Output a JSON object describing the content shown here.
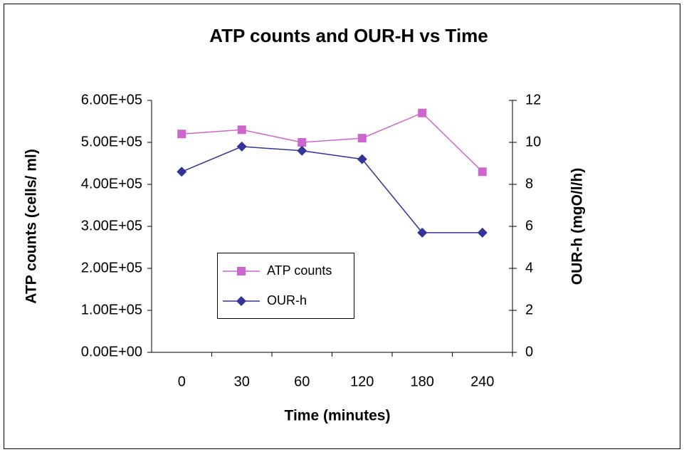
{
  "chart_data": {
    "type": "line",
    "title": "ATP counts and OUR-H vs Time",
    "x_label": "Time (minutes)",
    "y_label": "ATP counts (cells/ ml)",
    "y2_label": "OUR-h (mgO/l/h)",
    "categories": [
      "0",
      "30",
      "60",
      "120",
      "180",
      "240"
    ],
    "series": [
      {
        "name": "ATP counts",
        "color": "#cc66cc",
        "marker": "square",
        "values": [
          520000,
          530000,
          500000,
          510000,
          570000,
          430000
        ]
      },
      {
        "name": "OUR-h",
        "color": "#333399",
        "marker": "diamond",
        "axis": "y2",
        "values": [
          8.6,
          9.8,
          9.6,
          9.2,
          5.7,
          5.7
        ]
      }
    ],
    "ylim": [
      0,
      600000
    ],
    "yticks": [
      {
        "value": 0,
        "label": "0.00E+00"
      },
      {
        "value": 100000,
        "label": "1.00E+05"
      },
      {
        "value": 200000,
        "label": "2.00E+05"
      },
      {
        "value": 300000,
        "label": "3.00E+05"
      },
      {
        "value": 400000,
        "label": "4.00E+05"
      },
      {
        "value": 500000,
        "label": "5.00E+05"
      },
      {
        "value": 600000,
        "label": "6.00E+05"
      }
    ],
    "y2lim": [
      0,
      12
    ],
    "y2ticks": [
      0,
      2,
      4,
      6,
      8,
      10,
      12
    ],
    "grid": false
  }
}
